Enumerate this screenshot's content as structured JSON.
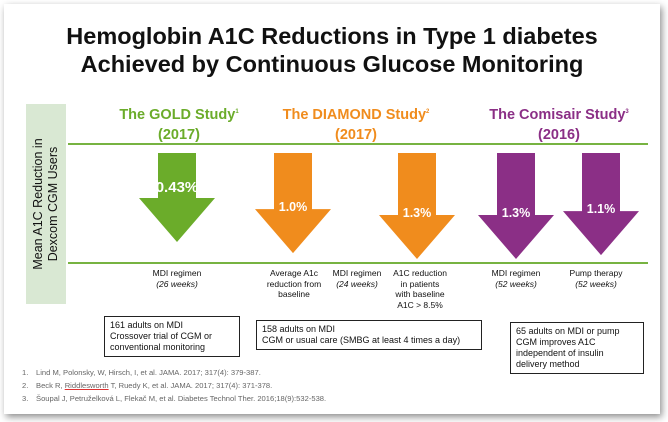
{
  "title": {
    "line1": "Hemoglobin A1C Reductions in Type 1 diabetes",
    "line2": "Achieved by Continuous Glucose Monitoring"
  },
  "y_axis_label": {
    "line1": "Mean A1C Reduction in",
    "line2": "Dexcom CGM Users"
  },
  "colors": {
    "gold": "#6bac2a",
    "diamond": "#f08c1d",
    "comisair": "#8b2f86",
    "rule": "#77b341",
    "ylabel_bg": "#d9e8d3"
  },
  "studies": [
    {
      "name": "The GOLD Study",
      "ref": "1",
      "year": "(2017)",
      "color": "#6bac2a"
    },
    {
      "name": "The DIAMOND Study",
      "ref": "2",
      "year": "(2017)",
      "color": "#f08c1d"
    },
    {
      "name": "The Comisair Study",
      "ref": "3",
      "year": "(2016)",
      "color": "#8b2f86"
    }
  ],
  "chart_data": {
    "type": "bar",
    "title": "Hemoglobin A1C Reductions in Type 1 diabetes Achieved by Continuous Glucose Monitoring",
    "ylabel": "Mean A1C Reduction in Dexcom CGM Users",
    "series": [
      {
        "study": "The GOLD Study",
        "label": "0.43%",
        "value": 0.43,
        "caption": "MDI regimen",
        "duration": "(26 weeks)"
      },
      {
        "study": "The DIAMOND Study",
        "label": "1.0%",
        "value": 1.0,
        "caption": "Average A1c reduction from baseline",
        "duration": ""
      },
      {
        "study": "The DIAMOND Study",
        "label": "1.3%",
        "value": 1.3,
        "caption": "A1C reduction in patients with baseline A1C > 8.5%",
        "duration": ""
      },
      {
        "study": "The Comisair Study",
        "label": "1.3%",
        "value": 1.3,
        "caption": "MDI regimen",
        "duration": "(52 weeks)"
      },
      {
        "study": "The Comisair Study",
        "label": "1.1%",
        "value": 1.1,
        "caption": "Pump therapy",
        "duration": "(52 weeks)"
      }
    ],
    "extra_caption": {
      "text": "MDI regimen",
      "duration": "(24 weeks)"
    }
  },
  "captions": {
    "gold_mdi": {
      "l1": "MDI regimen",
      "l2": "(26 weeks)"
    },
    "diamond_avg": {
      "l1": "Average A1c",
      "l2": "reduction from",
      "l3": "baseline"
    },
    "diamond_mdi": {
      "l1": "MDI regimen",
      "l2": "(24 weeks)"
    },
    "diamond_high": {
      "l1": "A1C reduction",
      "l2": "in patients",
      "l3": "with baseline",
      "l4": "A1C > 8.5%"
    },
    "comisair_mdi": {
      "l1": "MDI regimen",
      "l2": "(52 weeks)"
    },
    "comisair_pump": {
      "l1": "Pump therapy",
      "l2": "(52 weeks)"
    }
  },
  "boxes": {
    "gold": {
      "l1": "161 adults on MDI",
      "l2": "Crossover trial of CGM or",
      "l3": "conventional monitoring"
    },
    "diamond": {
      "l1": "158 adults on MDI",
      "l2": "CGM or usual care (SMBG at least 4 times a day)"
    },
    "comisair": {
      "l1": "65 adults on MDI or pump",
      "l2": "CGM improves A1C",
      "l3": "independent of insulin",
      "l4": "delivery method"
    }
  },
  "references": [
    {
      "num": "1.",
      "text": "Lind M, Polonsky, W, Hirsch, I, et al.  JAMA. 2017; 317(4): 379-387."
    },
    {
      "num": "2.",
      "pre": "Beck R, ",
      "underlined": "Riddlesworth",
      "post": " T, Ruedy K, et al.  JAMA. 2017; 317(4): 371-378."
    },
    {
      "num": "3.",
      "text": "Šoupal J, Petruželková L, Flekač M, et al. Diabetes Technol Ther. 2016;18(9):532-538."
    }
  ]
}
